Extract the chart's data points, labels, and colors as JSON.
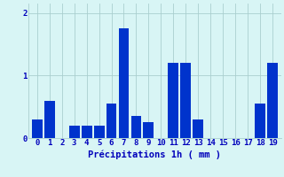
{
  "hours": [
    0,
    1,
    2,
    3,
    4,
    5,
    6,
    7,
    8,
    9,
    10,
    11,
    12,
    13,
    14,
    15,
    16,
    17,
    18,
    19
  ],
  "values": [
    0.3,
    0.6,
    0.0,
    0.2,
    0.2,
    0.2,
    0.55,
    1.75,
    0.35,
    0.25,
    0.0,
    1.2,
    1.2,
    0.3,
    0.0,
    0.0,
    0.0,
    0.0,
    0.55,
    1.2
  ],
  "bar_color": "#0033cc",
  "background_color": "#d8f5f5",
  "grid_color": "#aacfcf",
  "text_color": "#0000bb",
  "xlabel": "Précipitations 1h ( mm )",
  "ylim": [
    0,
    2.15
  ],
  "yticks": [
    0,
    1,
    2
  ],
  "label_fontsize": 7.5,
  "tick_fontsize": 6.5
}
